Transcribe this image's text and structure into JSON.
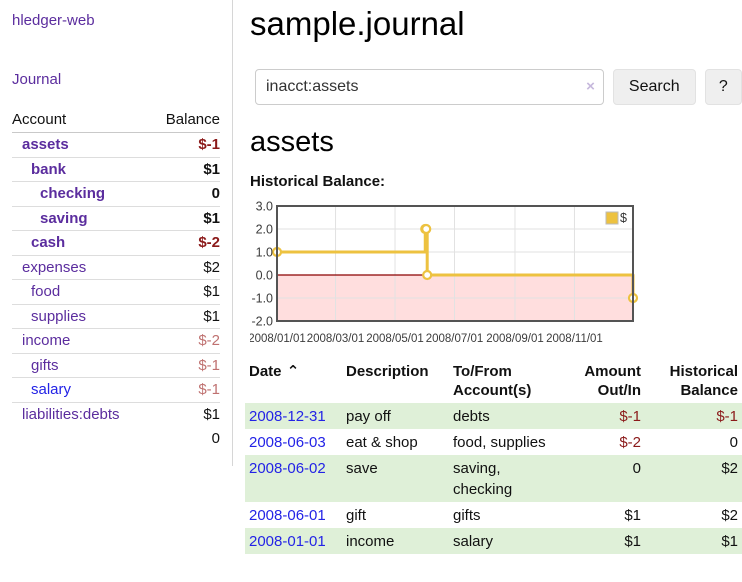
{
  "sidebar": {
    "brand": "hledger-web",
    "nav": {
      "journal": "Journal"
    },
    "table_headers": {
      "account": "Account",
      "balance": "Balance"
    },
    "accounts": [
      {
        "name": "assets",
        "balance": "$-1",
        "level": 1,
        "bold": true,
        "link_color": "purple"
      },
      {
        "name": "bank",
        "balance": "$1",
        "level": 2,
        "bold": true,
        "link_color": "purple"
      },
      {
        "name": "checking",
        "balance": "0",
        "level": 3,
        "bold": true,
        "link_color": "purple"
      },
      {
        "name": "saving",
        "balance": "$1",
        "level": 3,
        "bold": true,
        "link_color": "purple"
      },
      {
        "name": "cash",
        "balance": "$-2",
        "level": 2,
        "bold": true,
        "link_color": "purple"
      },
      {
        "name": "expenses",
        "balance": "$2",
        "level": 1,
        "bold": false,
        "link_color": "purple"
      },
      {
        "name": "food",
        "balance": "$1",
        "level": 2,
        "bold": false,
        "link_color": "purple"
      },
      {
        "name": "supplies",
        "balance": "$1",
        "level": 2,
        "bold": false,
        "link_color": "purple"
      },
      {
        "name": "income",
        "balance": "$-2",
        "level": 1,
        "bold": false,
        "link_color": "purple"
      },
      {
        "name": "gifts",
        "balance": "$-1",
        "level": 2,
        "bold": false,
        "link_color": "purple"
      },
      {
        "name": "salary",
        "balance": "$-1",
        "level": 2,
        "bold": false,
        "link_color": "blue"
      },
      {
        "name": "liabilities:debts",
        "balance": "$1",
        "level": 1,
        "bold": false,
        "link_color": "purple"
      }
    ],
    "total": "0"
  },
  "header": {
    "title": "sample.journal"
  },
  "search": {
    "value": "inacct:assets",
    "clear_icon": "×",
    "button_label": "Search",
    "help_label": "?"
  },
  "account_page": {
    "heading": "assets",
    "chart_label": "Historical Balance:"
  },
  "chart_data": {
    "type": "line",
    "title": "Historical Balance",
    "step": true,
    "legend": [
      {
        "label": "$",
        "color": "#edc240"
      }
    ],
    "legend_position": "top-right",
    "x_start": "2008-01-01",
    "x_end": "2008-12-31",
    "x_ticks": [
      "2008/01/01",
      "2008/03/01",
      "2008/05/01",
      "2008/07/01",
      "2008/09/01",
      "2008/11/01"
    ],
    "y_ticks": [
      3.0,
      2.0,
      1.0,
      0.0,
      -1.0,
      -2.0
    ],
    "ylim": [
      -2,
      3
    ],
    "points": [
      {
        "date": "2008-01-01",
        "value": 1
      },
      {
        "date": "2008-06-01",
        "value": 2
      },
      {
        "date": "2008-06-02",
        "value": 2
      },
      {
        "date": "2008-06-03",
        "value": 0
      },
      {
        "date": "2008-12-31",
        "value": -1
      }
    ],
    "line_color": "#edc240",
    "marker_fill": "#ffffff",
    "negative_region_color": "#ffdede",
    "zero_line_color": "#8b0000",
    "grid_color": "#e2e2e2",
    "border_color": "#545454"
  },
  "transactions": {
    "headers": [
      {
        "line1": "Date",
        "line2": "",
        "sort_icon": "⌃"
      },
      {
        "line1": "Description",
        "line2": ""
      },
      {
        "line1": "To/From",
        "line2": "Account(s)"
      },
      {
        "line1": "Amount",
        "line2": "Out/In"
      },
      {
        "line1": "Historical",
        "line2": "Balance"
      }
    ],
    "rows": [
      {
        "date": "2008-12-31",
        "description": "pay off",
        "accounts": "debts",
        "amount": "$-1",
        "balance": "$-1"
      },
      {
        "date": "2008-06-03",
        "description": "eat & shop",
        "accounts": "food, supplies",
        "amount": "$-2",
        "balance": "0"
      },
      {
        "date": "2008-06-02",
        "description": "save",
        "accounts": "saving, checking",
        "amount": "0",
        "balance": "$2"
      },
      {
        "date": "2008-06-01",
        "description": "gift",
        "accounts": "gifts",
        "amount": "$1",
        "balance": "$2"
      },
      {
        "date": "2008-01-01",
        "description": "income",
        "accounts": "salary",
        "amount": "$1",
        "balance": "$1"
      }
    ]
  }
}
